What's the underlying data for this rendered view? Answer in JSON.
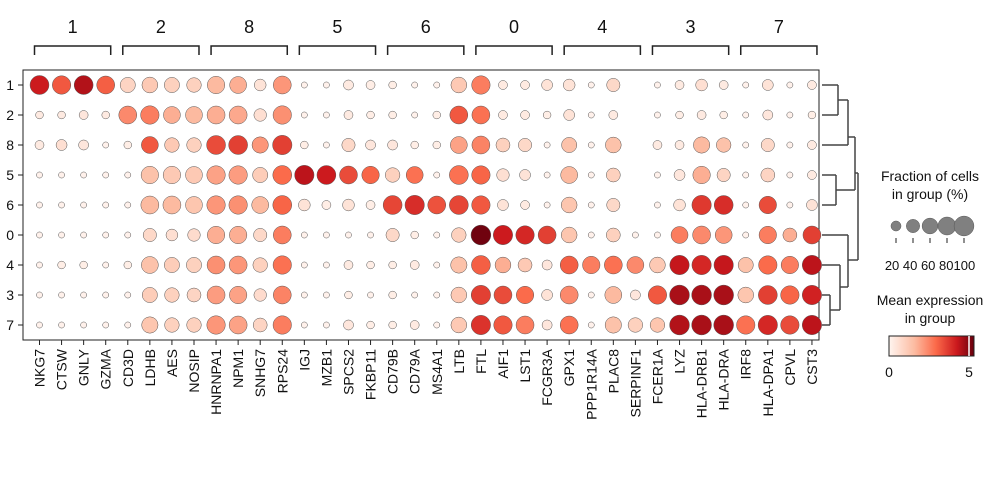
{
  "chart_data": {
    "type": "dotplot",
    "genes": [
      "NKG7",
      "CTSW",
      "GNLY",
      "GZMA",
      "CD3D",
      "LDHB",
      "AES",
      "NOSIP",
      "HNRNPA1",
      "NPM1",
      "SNHG7",
      "RPS24",
      "IGJ",
      "MZB1",
      "SPCS2",
      "FKBP11",
      "CD79B",
      "CD79A",
      "MS4A1",
      "LTB",
      "FTL",
      "AIF1",
      "LST1",
      "FCGR3A",
      "GPX1",
      "PPP1R14A",
      "PLAC8",
      "SERPINF1",
      "FCER1A",
      "LYZ",
      "HLA-DRB1",
      "HLA-DRA",
      "IRF8",
      "HLA-DPA1",
      "CPVL",
      "CST3"
    ],
    "groups": [
      "1",
      "2",
      "8",
      "5",
      "6",
      "0",
      "4",
      "3",
      "7"
    ],
    "brackets": [
      {
        "label": "1",
        "start": 0,
        "end": 3
      },
      {
        "label": "2",
        "start": 4,
        "end": 7
      },
      {
        "label": "8",
        "start": 8,
        "end": 11
      },
      {
        "label": "5",
        "start": 12,
        "end": 15
      },
      {
        "label": "6",
        "start": 16,
        "end": 19
      },
      {
        "label": "0",
        "start": 20,
        "end": 23
      },
      {
        "label": "4",
        "start": 24,
        "end": 27
      },
      {
        "label": "3",
        "start": 28,
        "end": 31
      },
      {
        "label": "7",
        "start": 32,
        "end": 35
      }
    ],
    "fraction_pct": [
      [
        90,
        85,
        90,
        80,
        55,
        60,
        55,
        50,
        75,
        70,
        30,
        80,
        5,
        5,
        20,
        15,
        10,
        5,
        5,
        60,
        85,
        15,
        15,
        25,
        30,
        5,
        40,
        0,
        5,
        15,
        30,
        15,
        5,
        25,
        5,
        15
      ],
      [
        10,
        10,
        15,
        10,
        80,
        85,
        70,
        70,
        80,
        80,
        35,
        85,
        5,
        5,
        15,
        10,
        10,
        5,
        10,
        80,
        80,
        15,
        15,
        10,
        25,
        5,
        15,
        0,
        5,
        10,
        15,
        10,
        5,
        20,
        5,
        10
      ],
      [
        15,
        25,
        20,
        5,
        10,
        70,
        50,
        50,
        90,
        90,
        65,
        95,
        10,
        5,
        40,
        20,
        20,
        10,
        10,
        70,
        80,
        45,
        40,
        5,
        55,
        5,
        60,
        0,
        15,
        15,
        65,
        50,
        5,
        40,
        5,
        15
      ],
      [
        5,
        5,
        5,
        5,
        5,
        75,
        75,
        70,
        85,
        85,
        55,
        90,
        95,
        90,
        80,
        75,
        50,
        70,
        5,
        90,
        85,
        35,
        25,
        5,
        70,
        5,
        45,
        0,
        5,
        25,
        75,
        40,
        5,
        45,
        5,
        15
      ],
      [
        5,
        5,
        5,
        5,
        5,
        80,
        80,
        70,
        85,
        85,
        70,
        90,
        30,
        15,
        30,
        15,
        90,
        95,
        80,
        90,
        85,
        25,
        15,
        5,
        60,
        5,
        40,
        0,
        5,
        30,
        95,
        90,
        5,
        75,
        5,
        25
      ],
      [
        5,
        5,
        5,
        5,
        5,
        40,
        30,
        35,
        75,
        75,
        40,
        80,
        5,
        5,
        5,
        5,
        40,
        10,
        5,
        50,
        100,
        95,
        85,
        80,
        60,
        5,
        45,
        5,
        5,
        70,
        80,
        70,
        5,
        75,
        45,
        80
      ],
      [
        5,
        10,
        10,
        5,
        10,
        70,
        55,
        55,
        80,
        80,
        50,
        85,
        5,
        5,
        15,
        10,
        10,
        15,
        5,
        65,
        90,
        60,
        45,
        20,
        80,
        75,
        80,
        70,
        60,
        95,
        95,
        95,
        55,
        85,
        75,
        95
      ],
      [
        5,
        5,
        5,
        5,
        5,
        55,
        50,
        45,
        80,
        75,
        35,
        80,
        5,
        5,
        10,
        5,
        10,
        5,
        5,
        60,
        95,
        80,
        75,
        25,
        80,
        5,
        70,
        20,
        85,
        100,
        100,
        100,
        60,
        90,
        85,
        95
      ],
      [
        5,
        5,
        5,
        5,
        5,
        65,
        50,
        50,
        85,
        80,
        45,
        85,
        5,
        5,
        20,
        10,
        10,
        15,
        5,
        60,
        95,
        85,
        80,
        20,
        80,
        5,
        65,
        50,
        50,
        100,
        100,
        100,
        85,
        95,
        85,
        95
      ]
    ],
    "mean_expr": [
      [
        4.2,
        3.2,
        4.5,
        3.1,
        0.9,
        1.2,
        1.0,
        1.0,
        1.6,
        1.8,
        0.5,
        2.2,
        0.1,
        0.1,
        0.3,
        0.2,
        0.2,
        0.1,
        0.1,
        1.2,
        2.6,
        0.3,
        0.3,
        0.5,
        0.5,
        0.1,
        0.8,
        0.0,
        0.1,
        0.3,
        0.6,
        0.3,
        0.1,
        0.5,
        0.1,
        0.3
      ],
      [
        0.3,
        0.3,
        0.4,
        0.3,
        2.4,
        2.6,
        1.8,
        1.6,
        1.8,
        1.9,
        0.6,
        2.3,
        0.1,
        0.1,
        0.3,
        0.2,
        0.2,
        0.1,
        0.2,
        3.2,
        2.8,
        0.3,
        0.3,
        0.2,
        0.5,
        0.1,
        0.3,
        0.0,
        0.1,
        0.2,
        0.3,
        0.2,
        0.1,
        0.4,
        0.1,
        0.2
      ],
      [
        0.3,
        0.6,
        0.4,
        0.1,
        0.2,
        3.2,
        1.2,
        1.0,
        3.4,
        3.6,
        2.2,
        3.6,
        0.2,
        0.1,
        0.8,
        0.4,
        0.4,
        0.2,
        0.2,
        2.0,
        2.5,
        1.0,
        0.8,
        0.1,
        1.4,
        0.1,
        1.4,
        0.0,
        0.3,
        0.3,
        1.6,
        1.4,
        0.1,
        0.8,
        0.1,
        0.3
      ],
      [
        0.1,
        0.1,
        0.1,
        0.1,
        0.1,
        1.4,
        1.2,
        1.2,
        2.0,
        2.1,
        1.1,
        2.9,
        4.4,
        4.2,
        3.4,
        3.0,
        1.0,
        2.8,
        0.1,
        2.8,
        3.0,
        0.6,
        0.5,
        0.1,
        1.6,
        0.1,
        1.0,
        0.0,
        0.1,
        0.4,
        1.8,
        0.9,
        0.1,
        0.9,
        0.1,
        0.3
      ],
      [
        0.1,
        0.1,
        0.1,
        0.1,
        0.1,
        1.6,
        1.6,
        1.3,
        2.2,
        2.3,
        1.6,
        3.0,
        0.5,
        0.2,
        0.5,
        0.2,
        3.5,
        3.9,
        3.3,
        3.5,
        3.2,
        0.5,
        0.3,
        0.1,
        1.3,
        0.1,
        0.8,
        0.0,
        0.1,
        0.5,
        3.7,
        3.9,
        0.1,
        3.4,
        0.1,
        0.5
      ],
      [
        0.1,
        0.1,
        0.1,
        0.1,
        0.1,
        0.8,
        0.6,
        0.7,
        1.8,
        1.8,
        0.8,
        2.6,
        0.1,
        0.1,
        0.1,
        0.1,
        0.8,
        0.2,
        0.1,
        1.0,
        5.2,
        4.2,
        4.0,
        3.6,
        1.3,
        0.1,
        1.0,
        0.1,
        0.1,
        2.6,
        2.4,
        2.2,
        0.1,
        2.6,
        1.8,
        3.6
      ],
      [
        0.1,
        0.2,
        0.2,
        0.1,
        0.2,
        1.4,
        1.1,
        1.0,
        2.3,
        2.2,
        1.0,
        2.8,
        0.1,
        0.1,
        0.3,
        0.2,
        0.2,
        0.3,
        0.1,
        1.4,
        3.1,
        1.8,
        1.2,
        0.4,
        3.1,
        2.6,
        2.8,
        2.4,
        1.2,
        4.3,
        4.0,
        4.3,
        1.4,
        2.9,
        2.6,
        4.4
      ],
      [
        0.1,
        0.1,
        0.1,
        0.1,
        0.1,
        1.1,
        1.0,
        0.9,
        2.1,
        2.0,
        0.7,
        2.5,
        0.1,
        0.1,
        0.2,
        0.1,
        0.2,
        0.1,
        0.1,
        1.2,
        3.6,
        3.4,
        2.9,
        0.5,
        2.4,
        0.1,
        1.6,
        0.4,
        3.2,
        4.6,
        4.6,
        4.6,
        1.3,
        3.6,
        3.0,
        4.1
      ],
      [
        0.1,
        0.1,
        0.1,
        0.1,
        0.1,
        1.3,
        1.0,
        1.0,
        2.2,
        2.0,
        0.9,
        2.6,
        0.1,
        0.1,
        0.4,
        0.2,
        0.2,
        0.3,
        0.1,
        1.2,
        3.8,
        3.2,
        2.6,
        0.4,
        2.8,
        0.1,
        1.4,
        1.0,
        1.3,
        4.5,
        4.6,
        4.6,
        2.8,
        4.0,
        3.4,
        4.4
      ]
    ],
    "size_legend": {
      "title_lines": [
        "Fraction of cells",
        "in group (%)"
      ],
      "values": [
        20,
        40,
        60,
        80,
        100
      ],
      "tick_text": "20 40 60 80100"
    },
    "color_legend": {
      "title_lines": [
        "Mean expression",
        "in group"
      ],
      "min_label": "0",
      "max_label": "5",
      "range": [
        0,
        5.3
      ]
    },
    "colors": {
      "low": "#fff5f0",
      "mid1": "#fcbba1",
      "mid2": "#fb6a4a",
      "mid3": "#cb181d",
      "high": "#67000d",
      "dot_edge": "#555555",
      "size_dot": "#808080"
    }
  }
}
